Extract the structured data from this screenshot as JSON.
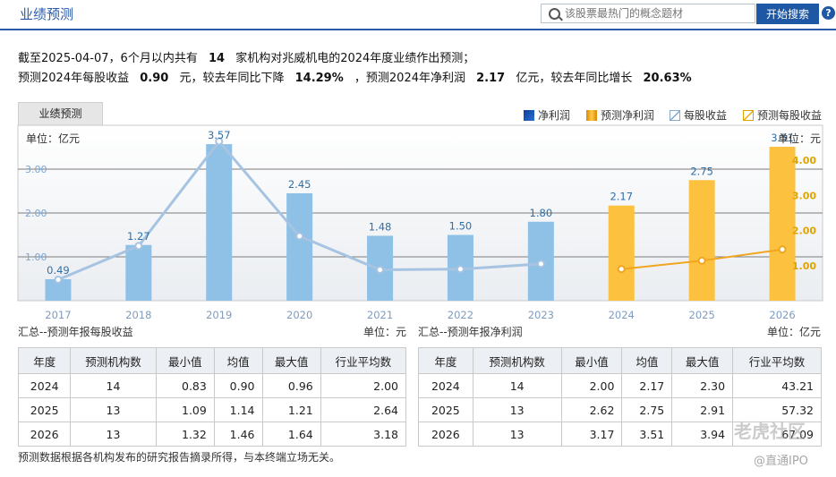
{
  "header": {
    "title": "业绩预测",
    "search_placeholder": "该股票最热门的概念题材",
    "search_button": "开始搜索",
    "help": "?"
  },
  "summary": {
    "l1_a": "截至2025-04-07，6个月以内共有",
    "l1_count": "14",
    "l1_b": "家机构对兆威机电的2024年度业绩作出预测；",
    "l2_a": "预测2024年每股收益",
    "l2_eps": "0.90",
    "l2_b": "元，较去年同比下降",
    "l2_eps_chg": "14.29%",
    "l2_c": "，预测2024年净利润",
    "l2_np": "2.17",
    "l2_d": "亿元，较去年同比增长",
    "l2_np_chg": "20.63%"
  },
  "tab_label": "业绩预测",
  "legend": {
    "net_profit": "净利润",
    "forecast_net_profit": "预测净利润",
    "eps": "每股收益",
    "forecast_eps": "预测每股收益"
  },
  "colors": {
    "actual_bar": "#8fc0e6",
    "forecast_bar": "#fbc13f",
    "actual_line": "#a6c4e2",
    "forecast_line": "#f2a51e",
    "left_tick": "#7aa6d6",
    "right_tick": "#e0a400",
    "value_label": "#2f6fa8"
  },
  "chart_data": {
    "type": "bar",
    "categories": [
      "2017",
      "2018",
      "2019",
      "2020",
      "2021",
      "2022",
      "2023",
      "2024",
      "2025",
      "2026"
    ],
    "forecast_from": "2024",
    "left_unit": "单位：亿元",
    "right_unit": "单位：元",
    "left_ticks": [
      "1.00",
      "2.00",
      "3.00"
    ],
    "right_ticks": [
      "1.00",
      "2.00",
      "3.00",
      "4.00"
    ],
    "left_ylim": [
      0,
      4
    ],
    "right_ylim": [
      0,
      5
    ],
    "series": [
      {
        "name": "净利润",
        "kind": "bar",
        "values": [
          0.49,
          1.27,
          3.57,
          2.45,
          1.48,
          1.5,
          1.8,
          2.17,
          2.75,
          3.51
        ],
        "labels": [
          "0.49",
          "1.27",
          "3.57",
          "2.45",
          "1.48",
          "1.50",
          "1.80",
          "2.17",
          "2.75",
          "3.51"
        ]
      },
      {
        "name": "每股收益",
        "kind": "line",
        "values": [
          0.6,
          1.56,
          4.54,
          1.84,
          0.88,
          0.9,
          1.05,
          0.9,
          1.14,
          1.46
        ]
      }
    ]
  },
  "tables": {
    "left_caption": "汇总--预测年报每股收益",
    "left_unit": "单位：元",
    "right_caption": "汇总--预测年报净利润",
    "right_unit": "单位：亿元",
    "headers": [
      "年度",
      "预测机构数",
      "最小值",
      "均值",
      "最大值",
      "行业平均数"
    ],
    "left_rows": [
      [
        "2024",
        "14",
        "0.83",
        "0.90",
        "0.96",
        "2.00"
      ],
      [
        "2025",
        "13",
        "1.09",
        "1.14",
        "1.21",
        "2.64"
      ],
      [
        "2026",
        "13",
        "1.32",
        "1.46",
        "1.64",
        "3.18"
      ]
    ],
    "right_rows": [
      [
        "2024",
        "14",
        "2.00",
        "2.17",
        "2.30",
        "43.21"
      ],
      [
        "2025",
        "13",
        "2.62",
        "2.75",
        "2.91",
        "57.32"
      ],
      [
        "2026",
        "13",
        "3.17",
        "3.51",
        "3.94",
        "67.09"
      ]
    ]
  },
  "footnote": "预测数据根据各机构发布的研究报告摘录所得，与本终端立场无关。",
  "watermark": {
    "brand": "老虎社区",
    "handle": "@直通IPO"
  }
}
